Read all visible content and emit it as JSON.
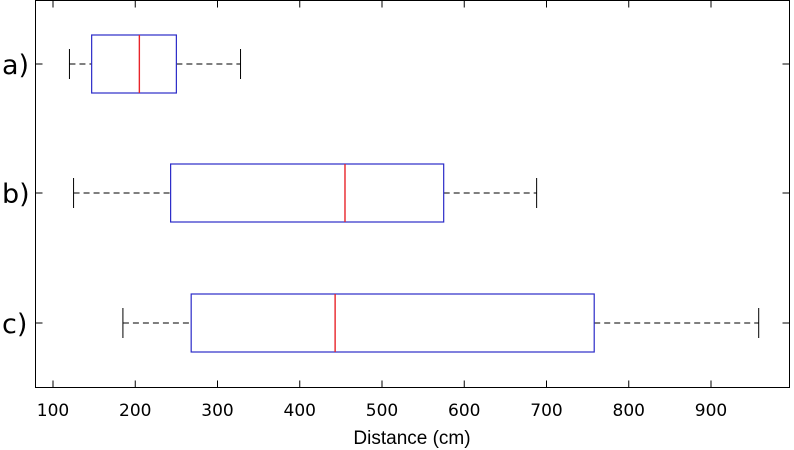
{
  "chart_data": {
    "type": "boxplot",
    "orientation": "horizontal",
    "xlabel": "Distance (cm)",
    "xlim": [
      80,
      1000
    ],
    "xticks": [
      100,
      200,
      300,
      400,
      500,
      600,
      700,
      800,
      900
    ],
    "grid": false,
    "categories": [
      "a)",
      "b)",
      "c)"
    ],
    "boxes": [
      {
        "label": "a)",
        "whisker_low": 120,
        "q1": 147,
        "median": 205,
        "q3": 250,
        "whisker_high": 328
      },
      {
        "label": "b)",
        "whisker_low": 125,
        "q1": 243,
        "median": 455,
        "q3": 575,
        "whisker_high": 688
      },
      {
        "label": "c)",
        "whisker_low": 185,
        "q1": 268,
        "median": 443,
        "q3": 758,
        "whisker_high": 958
      }
    ],
    "colors": {
      "box": "#2b2bc8",
      "median": "#e8242a",
      "whisker": "#333333",
      "axis": "#000000"
    }
  }
}
